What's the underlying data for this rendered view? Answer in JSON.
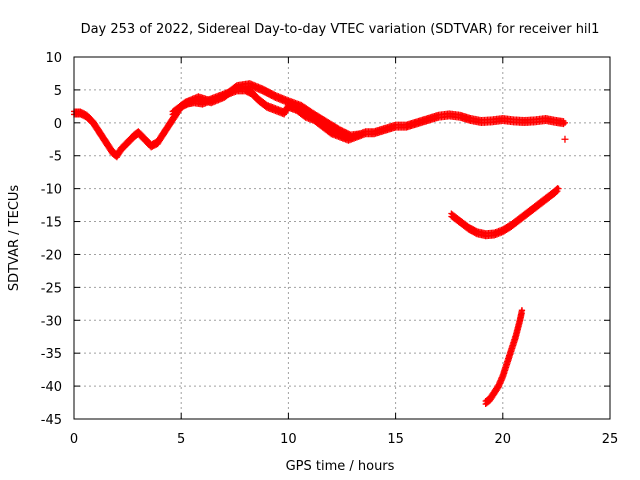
{
  "chart_data": {
    "type": "scatter",
    "title": "Day 253 of 2022, Sidereal Day-to-day VTEC variation (SDTVAR) for receiver hil1",
    "xlabel": "GPS time / hours",
    "ylabel": "SDTVAR / TECUs",
    "xlim": [
      0,
      25
    ],
    "ylim": [
      -45,
      10
    ],
    "xticks": [
      0,
      5,
      10,
      15,
      20,
      25
    ],
    "yticks": [
      10,
      5,
      0,
      -5,
      -10,
      -15,
      -20,
      -25,
      -30,
      -35,
      -40,
      -45
    ],
    "grid": true,
    "marker": "+",
    "color": "#ff0000",
    "series": [
      {
        "name": "main trace",
        "x": [
          0.0,
          0.3,
          0.6,
          0.9,
          1.2,
          1.5,
          1.8,
          2.0,
          2.2,
          2.5,
          2.8,
          3.0,
          3.3,
          3.6,
          3.9,
          4.2,
          4.5,
          4.8,
          5.0,
          5.3,
          5.6,
          6.0,
          6.4,
          6.8,
          7.2,
          7.6,
          8.0,
          8.3,
          8.6,
          9.0,
          9.4,
          9.8,
          10.0,
          10.4,
          10.8,
          11.2,
          11.6,
          12.0,
          12.4,
          12.8,
          13.2,
          13.6,
          14.0,
          14.5,
          15.0,
          15.5,
          16.0,
          16.5,
          17.0,
          17.5,
          18.0,
          18.5,
          19.0,
          19.5,
          20.0,
          20.5,
          21.0,
          21.5,
          22.0,
          22.5,
          22.9
        ],
        "y": [
          1.5,
          1.5,
          1.0,
          0.0,
          -1.5,
          -3.0,
          -4.5,
          -5.0,
          -4.0,
          -3.0,
          -2.0,
          -1.5,
          -2.5,
          -3.5,
          -3.0,
          -1.5,
          0.0,
          1.5,
          2.5,
          3.0,
          3.2,
          3.0,
          3.5,
          4.0,
          4.5,
          5.0,
          5.0,
          4.5,
          3.5,
          2.5,
          2.0,
          1.5,
          2.5,
          2.0,
          1.0,
          0.5,
          -0.5,
          -1.5,
          -2.0,
          -2.5,
          -2.0,
          -1.5,
          -1.5,
          -1.0,
          -0.5,
          -0.5,
          0.0,
          0.5,
          1.0,
          1.2,
          1.0,
          0.5,
          0.2,
          0.3,
          0.5,
          0.3,
          0.2,
          0.3,
          0.5,
          0.2,
          0.0
        ]
      },
      {
        "name": "secondary band",
        "x": [
          4.6,
          5.2,
          5.8,
          6.4,
          7.0,
          7.6,
          8.2,
          8.8,
          9.4,
          10.0,
          10.6,
          11.2,
          11.8,
          12.4,
          12.9,
          13.4
        ],
        "y": [
          1.5,
          3.0,
          3.8,
          3.2,
          4.0,
          5.5,
          5.8,
          5.0,
          4.0,
          3.2,
          2.5,
          1.2,
          0.0,
          -1.2,
          -2.0,
          -1.8
        ]
      },
      {
        "name": "arc",
        "x": [
          17.6,
          18.0,
          18.4,
          18.8,
          19.2,
          19.6,
          20.0,
          20.4,
          20.8,
          21.2,
          21.6,
          22.0,
          22.4,
          22.6
        ],
        "y": [
          -14.0,
          -15.0,
          -16.0,
          -16.7,
          -17.0,
          -16.9,
          -16.4,
          -15.6,
          -14.6,
          -13.6,
          -12.6,
          -11.6,
          -10.6,
          -10.0
        ]
      },
      {
        "name": "steep segment",
        "x": [
          19.2,
          19.4,
          19.6,
          19.8,
          20.0,
          20.2,
          20.4,
          20.6,
          20.8,
          20.9
        ],
        "y": [
          -42.5,
          -42.0,
          -41.0,
          -40.0,
          -38.5,
          -36.5,
          -34.5,
          -32.5,
          -30.0,
          -28.5
        ]
      },
      {
        "name": "outlier",
        "x": [
          22.9
        ],
        "y": [
          -2.5
        ]
      }
    ]
  }
}
